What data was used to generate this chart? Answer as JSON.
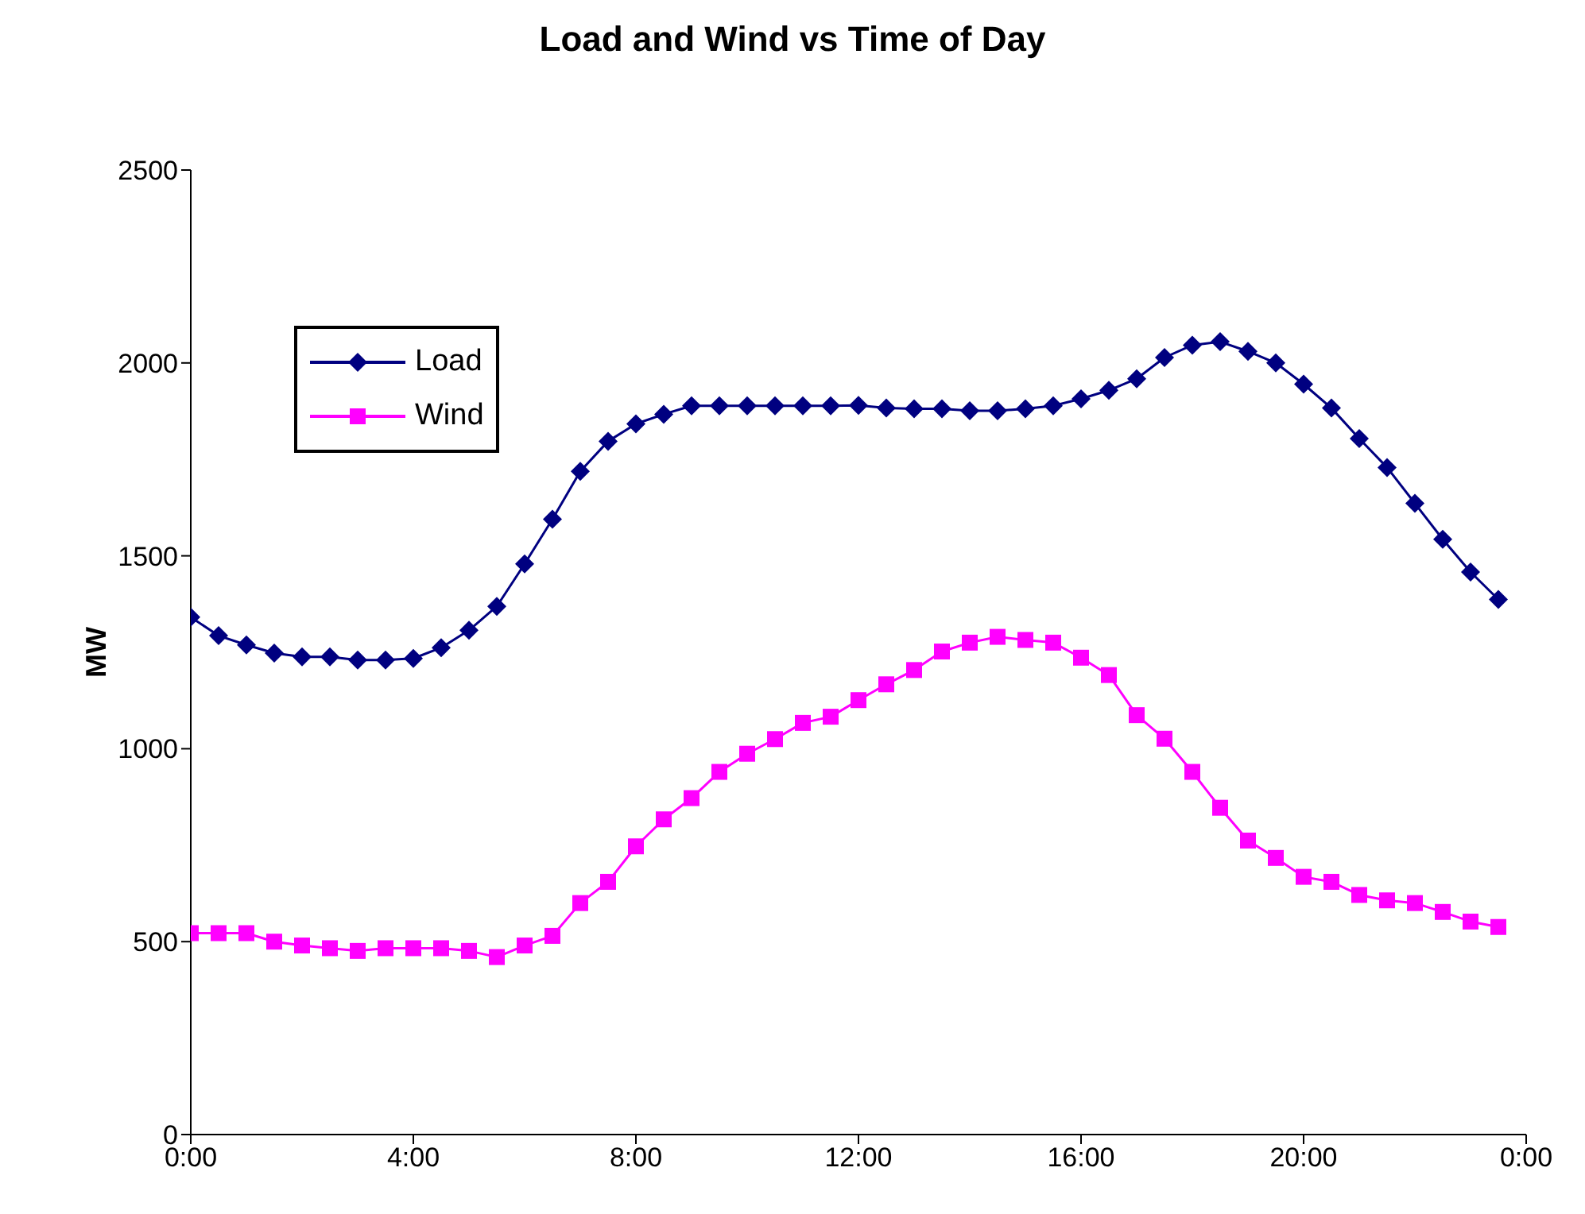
{
  "chart_data": {
    "type": "line",
    "title": "Load and Wind vs Time of Day",
    "ylabel": "MW",
    "x": [
      0,
      0.5,
      1,
      1.5,
      2,
      2.5,
      3,
      3.5,
      4,
      4.5,
      5,
      5.5,
      6,
      6.5,
      7,
      7.5,
      8,
      8.5,
      9,
      9.5,
      10,
      10.5,
      11,
      11.5,
      12,
      12.5,
      13,
      13.5,
      14,
      14.5,
      15,
      15.5,
      16,
      16.5,
      17,
      17.5,
      18,
      18.5,
      19,
      19.5,
      20,
      20.5,
      21,
      21.5,
      22,
      22.5,
      23,
      23.5
    ],
    "series": [
      {
        "name": "Load",
        "color": "#000080",
        "marker": "diamond",
        "values": [
          1341,
          1293,
          1269,
          1248,
          1238,
          1238,
          1230,
          1230,
          1234,
          1262,
          1307,
          1369,
          1479,
          1595,
          1719,
          1797,
          1842,
          1867,
          1889,
          1889,
          1889,
          1889,
          1889,
          1889,
          1890,
          1883,
          1881,
          1881,
          1876,
          1876,
          1881,
          1889,
          1907,
          1929,
          1959,
          2014,
          2046,
          2055,
          2030,
          2000,
          1945,
          1883,
          1804,
          1729,
          1636,
          1543,
          1458,
          1387
        ]
      },
      {
        "name": "Wind",
        "color": "#ff00ff",
        "marker": "square",
        "values": [
          522,
          522,
          522,
          500,
          490,
          483,
          476,
          483,
          483,
          483,
          476,
          460,
          490,
          515,
          600,
          655,
          747,
          817,
          872,
          940,
          987,
          1025,
          1067,
          1083,
          1126,
          1167,
          1204,
          1252,
          1275,
          1290,
          1282,
          1275,
          1236,
          1191,
          1087,
          1026,
          940,
          847,
          762,
          717,
          668,
          655,
          621,
          607,
          600,
          577,
          552,
          538
        ]
      }
    ],
    "xlim": [
      0,
      24
    ],
    "xticks": [
      {
        "value": 0,
        "label": "0:00"
      },
      {
        "value": 4,
        "label": "4:00"
      },
      {
        "value": 8,
        "label": "8:00"
      },
      {
        "value": 12,
        "label": "12:00"
      },
      {
        "value": 16,
        "label": "16:00"
      },
      {
        "value": 20,
        "label": "20:00"
      },
      {
        "value": 24,
        "label": "0:00"
      }
    ],
    "ylim": [
      0,
      2500
    ],
    "yticks": [
      0,
      500,
      1000,
      1500,
      2000,
      2500
    ],
    "grid": false,
    "legend": "top left"
  }
}
